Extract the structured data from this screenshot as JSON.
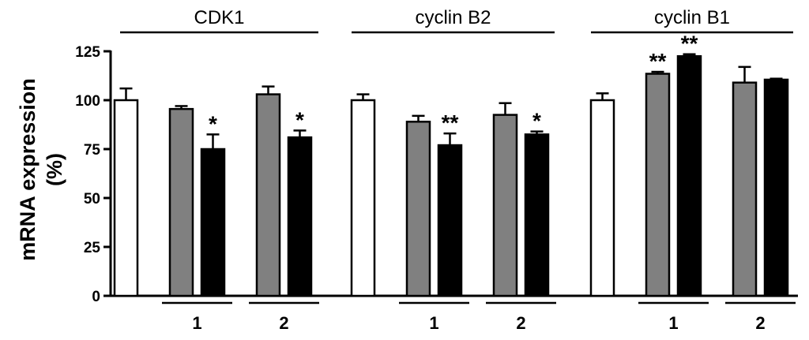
{
  "chart_data": {
    "type": "bar",
    "ylabel_line1": "mRNA expression",
    "ylabel_line2": "(%)",
    "ylim": [
      0,
      125
    ],
    "yticks": [
      "0",
      "25",
      "50",
      "75",
      "100",
      "125"
    ],
    "grid": false,
    "groups": [
      {
        "label": "CDK1",
        "bars": [
          {
            "value": 100,
            "error": 6,
            "fill": "white",
            "sig": ""
          },
          {
            "value": 95.5,
            "error": 1.5,
            "fill": "gray",
            "sig": ""
          },
          {
            "value": 75,
            "error": 7.5,
            "fill": "black",
            "sig": "*"
          },
          {
            "value": 103,
            "error": 4,
            "fill": "gray",
            "sig": ""
          },
          {
            "value": 81,
            "error": 3.5,
            "fill": "black",
            "sig": "*"
          }
        ],
        "sub_labels": [
          "1",
          "2"
        ]
      },
      {
        "label": "cyclin B2",
        "bars": [
          {
            "value": 100,
            "error": 3,
            "fill": "white",
            "sig": ""
          },
          {
            "value": 89,
            "error": 3,
            "fill": "gray",
            "sig": ""
          },
          {
            "value": 77,
            "error": 6,
            "fill": "black",
            "sig": "**"
          },
          {
            "value": 92.5,
            "error": 6,
            "fill": "gray",
            "sig": ""
          },
          {
            "value": 82.5,
            "error": 1.5,
            "fill": "black",
            "sig": "*"
          }
        ],
        "sub_labels": [
          "1",
          "2"
        ]
      },
      {
        "label": "cyclin B1",
        "bars": [
          {
            "value": 100,
            "error": 3.5,
            "fill": "white",
            "sig": ""
          },
          {
            "value": 113.5,
            "error": 1,
            "fill": "gray",
            "sig": "**"
          },
          {
            "value": 122.5,
            "error": 1,
            "fill": "black",
            "sig": "**"
          },
          {
            "value": 109,
            "error": 8,
            "fill": "gray",
            "sig": ""
          },
          {
            "value": 110.5,
            "error": 0.5,
            "fill": "black",
            "sig": ""
          }
        ],
        "sub_labels": [
          "1",
          "2"
        ]
      }
    ],
    "colors": {
      "white": "#ffffff",
      "gray": "#808080",
      "black": "#000000",
      "stroke": "#000000"
    }
  }
}
